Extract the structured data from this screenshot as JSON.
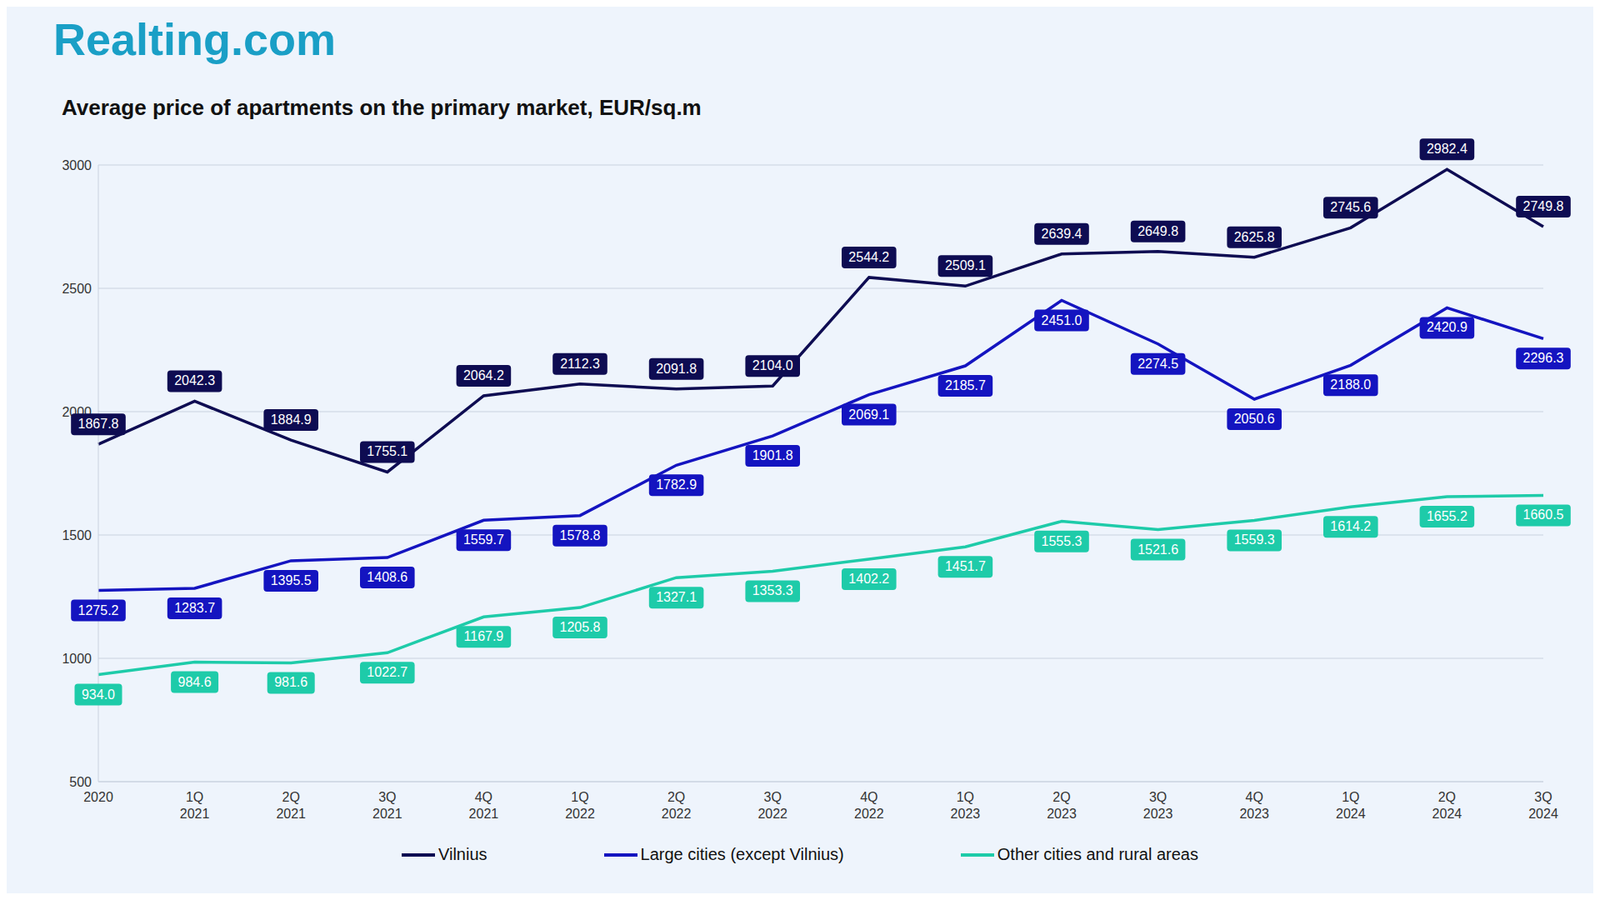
{
  "chart_data": {
    "type": "line",
    "brand": "Realting.com",
    "title": "Average price of apartments on the primary market, EUR/sq.m",
    "categories": [
      "2020",
      "1Q 2021",
      "2Q 2021",
      "3Q 2021",
      "4Q 2021",
      "1Q 2022",
      "2Q 2022",
      "3Q 2022",
      "4Q 2022",
      "1Q 2023",
      "2Q 2023",
      "3Q 2023",
      "4Q 2023",
      "1Q 2024",
      "2Q 2024",
      "3Q 2024"
    ],
    "series": [
      {
        "name": "Vilnius",
        "color": "#0e0c52",
        "values": [
          1867.8,
          2042.3,
          1884.9,
          1755.1,
          2064.2,
          2112.3,
          2091.8,
          2104.0,
          2544.2,
          2509.1,
          2639.4,
          2649.8,
          2625.8,
          2745.6,
          2982.4,
          2749.8
        ],
        "value_labels": [
          "1867.8",
          "2042.3",
          "1884.9",
          "1755.1",
          "2064.2",
          "2112.3",
          "2091.8",
          "2104.0",
          "2544.2",
          "2509.1",
          "2639.4",
          "2649.8",
          "2625.8",
          "2745.6",
          "2982.4",
          "2749.8"
        ]
      },
      {
        "name": "Large cities (except Vilnius)",
        "color": "#1414c0",
        "values": [
          1275.2,
          1283.7,
          1395.5,
          1408.6,
          1559.7,
          1578.8,
          1782.9,
          1901.8,
          2069.1,
          2185.7,
          2451.0,
          2274.5,
          2050.6,
          2188.0,
          2420.9,
          2296.3
        ],
        "value_labels": [
          "1275.2",
          "1283.7",
          "1395.5",
          "1408.6",
          "1559.7",
          "1578.8",
          "1782.9",
          "1901.8",
          "2069.1",
          "2185.7",
          "2451.0",
          "2274.5",
          "2050.6",
          "2188.0",
          "2420.9",
          "2296.3"
        ]
      },
      {
        "name": "Other cities and rural areas",
        "color": "#1ecba9",
        "values": [
          934.0,
          984.6,
          981.6,
          1022.7,
          1167.9,
          1205.8,
          1327.1,
          1353.3,
          1402.2,
          1451.7,
          1555.3,
          1521.6,
          1559.3,
          1614.2,
          1655.2,
          1660.5
        ],
        "value_labels": [
          "934.0",
          "984.6",
          "981.6",
          "1022.7",
          "1167.9",
          "1205.8",
          "1327.1",
          "1353.3",
          "1402.2",
          "1451.7",
          "1555.3",
          "1521.6",
          "1559.3",
          "1614.2",
          "1655.2",
          "1660.5"
        ]
      }
    ],
    "ylim": [
      500,
      3000
    ],
    "yticks": [
      500,
      1000,
      1500,
      2000,
      2500,
      3000
    ],
    "grid": true,
    "data_labels": true,
    "legend": "bottom"
  }
}
